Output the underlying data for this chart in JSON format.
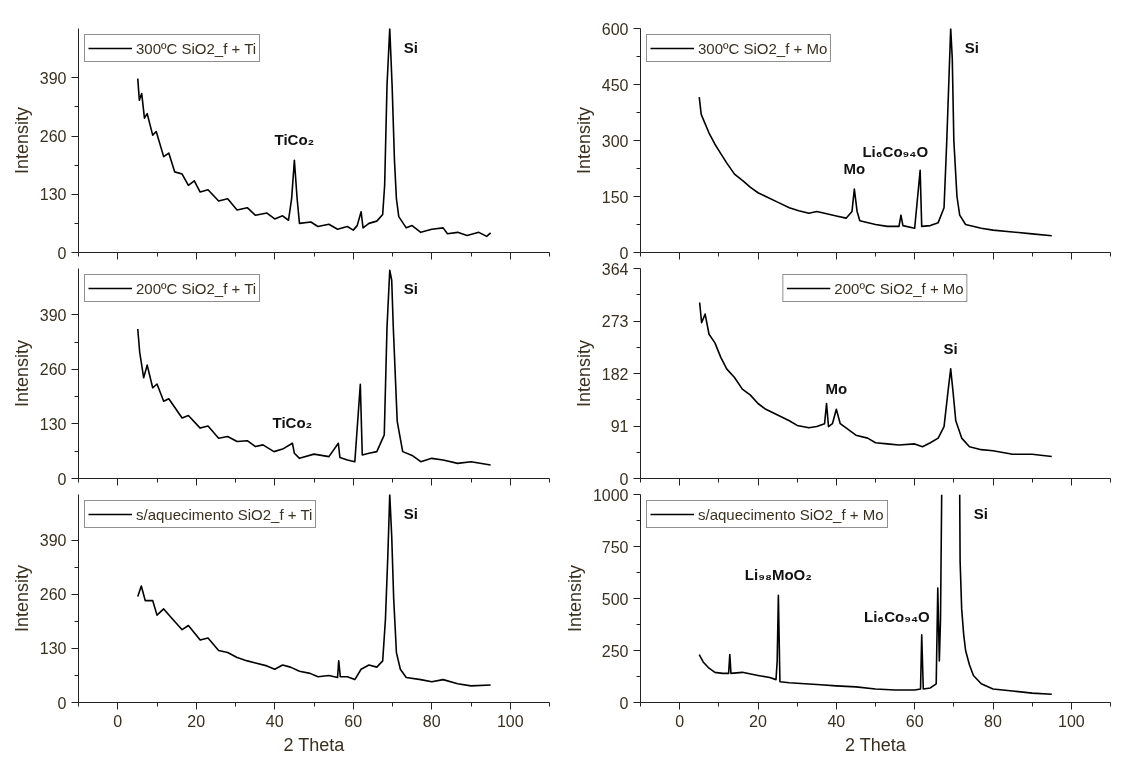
{
  "chart_data": [
    {
      "type": "line",
      "ylabel": "Intensity",
      "xlim": [
        -10,
        110
      ],
      "xticks": [
        0,
        20,
        40,
        60,
        80,
        100
      ],
      "ylim": [
        0,
        500
      ],
      "yticks": [
        0,
        130,
        260,
        390
      ],
      "legend": "top left",
      "tick_labels": "y",
      "x": [
        5.1,
        5.5,
        6.1,
        6.8,
        7.5,
        8.9,
        9.8,
        11.7,
        13,
        14.5,
        16.4,
        18,
        19.5,
        21,
        23,
        25.7,
        28,
        30.4,
        33,
        35.1,
        38,
        40,
        42,
        43.5,
        44.3,
        45,
        45.7,
        46.3,
        49.2,
        51,
        53.8,
        56,
        58.5,
        60,
        61,
        62,
        62.5,
        64,
        66,
        67.5,
        68,
        68.6,
        69.3,
        69.9,
        70.5,
        71,
        71.6,
        73.5,
        75,
        77.2,
        80,
        82.9,
        84,
        86.6,
        89,
        92,
        94,
        95
      ],
      "series": [
        {
          "name": "300ºC SiO2_f + Ti",
          "color": "#000000",
          "values": [
            388,
            340,
            355,
            300,
            310,
            262,
            270,
            214,
            222,
            180,
            175,
            150,
            160,
            135,
            140,
            115,
            120,
            95,
            100,
            83,
            88,
            75,
            82,
            72,
            120,
            206,
            120,
            65,
            68,
            58,
            63,
            52,
            58,
            50,
            60,
            91,
            55,
            65,
            70,
            85,
            150,
            373,
            500,
            373,
            206,
            120,
            80,
            55,
            60,
            45,
            52,
            55,
            42,
            45,
            38,
            45,
            36,
            44
          ]
        }
      ],
      "annotations": [
        {
          "text": "TiCo₂",
          "x": 45,
          "y": 206
        },
        {
          "text": "Si",
          "x": 69.3,
          "y": 500
        }
      ]
    },
    {
      "type": "line",
      "ylabel": "Intensity",
      "xlim": [
        -10,
        110
      ],
      "xticks": [
        0,
        20,
        40,
        60,
        80,
        100
      ],
      "ylim": [
        0,
        500
      ],
      "yticks": [
        0,
        130,
        260,
        390
      ],
      "legend": "top left",
      "tick_labels": "y",
      "x": [
        5.1,
        5.6,
        6.6,
        7.5,
        8.9,
        10,
        11.7,
        13,
        16.4,
        18,
        21,
        23,
        25.7,
        28,
        30.4,
        33,
        35.1,
        37,
        39.8,
        42,
        44.5,
        45,
        46.3,
        50,
        53.8,
        56.2,
        56.6,
        58.5,
        60.4,
        61.8,
        62.3,
        64,
        66,
        67.9,
        68.6,
        69.3,
        69.8,
        70.2,
        71.2,
        72.6,
        75,
        77.2,
        80,
        82.9,
        86.6,
        90,
        95
      ],
      "series": [
        {
          "name": "200ºC SiO2_f + Ti",
          "color": "#000000",
          "values": [
            356,
            300,
            240,
            270,
            216,
            225,
            184,
            190,
            144,
            150,
            120,
            125,
            96,
            100,
            88,
            90,
            76,
            80,
            64,
            70,
            84,
            60,
            48,
            58,
            52,
            84,
            50,
            44,
            40,
            224,
            56,
            60,
            64,
            104,
            360,
            496,
            472,
            360,
            136,
            64,
            55,
            40,
            48,
            44,
            36,
            40,
            32
          ]
        }
      ],
      "annotations": [
        {
          "text": "TiCo₂",
          "x": 44.5,
          "y": 84
        },
        {
          "text": "Si",
          "x": 69.3,
          "y": 496
        }
      ]
    },
    {
      "type": "line",
      "xlabel": "2 Theta",
      "ylabel": "Intensity",
      "xlim": [
        -10,
        110
      ],
      "xticks": [
        0,
        20,
        40,
        60,
        80,
        100
      ],
      "ylim": [
        0,
        500
      ],
      "yticks": [
        0,
        130,
        260,
        390
      ],
      "legend": "top left",
      "x": [
        5.1,
        6,
        7,
        8.9,
        10,
        11.7,
        14,
        16.4,
        18,
        21,
        23,
        25.7,
        28,
        30.4,
        33,
        35.1,
        38,
        40,
        42,
        44,
        46.3,
        49,
        51,
        53.8,
        56,
        56.3,
        56.7,
        58.5,
        60.4,
        62,
        64,
        66,
        67.5,
        68.2,
        68.8,
        69.3,
        69.8,
        70.3,
        71,
        72,
        73.5,
        77.2,
        80,
        82.9,
        86.6,
        90,
        95
      ],
      "series": [
        {
          "name": "s/aquecimento SiO2_f + Ti",
          "color": "#000000",
          "values": [
            255,
            280,
            245,
            245,
            210,
            225,
            200,
            175,
            185,
            150,
            155,
            125,
            120,
            108,
            100,
            95,
            88,
            80,
            90,
            85,
            75,
            70,
            62,
            65,
            60,
            100,
            62,
            62,
            55,
            80,
            90,
            85,
            100,
            200,
            350,
            500,
            400,
            250,
            120,
            80,
            60,
            55,
            50,
            55,
            45,
            40,
            42
          ]
        }
      ],
      "annotations": [
        {
          "text": "Si",
          "x": 69.3,
          "y": 500
        }
      ]
    },
    {
      "type": "line",
      "ylabel": "Intensity",
      "xlim": [
        -10,
        110
      ],
      "xticks": [
        0,
        20,
        40,
        60,
        80,
        100
      ],
      "ylim": [
        0,
        600
      ],
      "yticks": [
        0,
        150,
        300,
        450,
        600
      ],
      "legend": "top left",
      "tick_labels": "y",
      "x": [
        5.0,
        5.5,
        6.3,
        7.5,
        9,
        10.5,
        12,
        14,
        16.4,
        18,
        20,
        22,
        25,
        28,
        30.4,
        33,
        35,
        37,
        40,
        42.5,
        44,
        44.6,
        45.3,
        46,
        50,
        53,
        56,
        56.5,
        57,
        60,
        61.4,
        61.8,
        64,
        66,
        67.5,
        68.2,
        68.8,
        69.2,
        69.6,
        70,
        70.8,
        71.5,
        73,
        77,
        80,
        85,
        90,
        95
      ],
      "series": [
        {
          "name": "300ºC SiO2_f + Mo",
          "color": "#000000",
          "values": [
            416,
            370,
            350,
            320,
            290,
            265,
            240,
            210,
            190,
            175,
            160,
            150,
            135,
            120,
            112,
            105,
            110,
            105,
            98,
            92,
            110,
            170,
            110,
            85,
            75,
            70,
            70,
            100,
            72,
            65,
            220,
            70,
            72,
            80,
            120,
            300,
            480,
            600,
            520,
            300,
            150,
            100,
            75,
            65,
            60,
            55,
            50,
            45
          ]
        }
      ],
      "annotations": [
        {
          "text": "Mo",
          "x": 44.6,
          "y": 170
        },
        {
          "text": "Li₆Co₉₄O",
          "x": 61.4,
          "y": 220
        },
        {
          "text": "Si",
          "x": 69.2,
          "y": 600
        }
      ]
    },
    {
      "type": "line",
      "ylabel": "Intensity",
      "xlim": [
        -10,
        110
      ],
      "xticks": [
        0,
        20,
        40,
        60,
        80,
        100
      ],
      "ylim": [
        0,
        364
      ],
      "yticks": [
        0,
        91,
        182,
        273,
        364
      ],
      "legend": "top",
      "tick_labels": "y",
      "x": [
        5.1,
        5.6,
        6.5,
        7.5,
        9,
        10.5,
        12,
        14,
        16,
        18,
        20,
        22,
        25,
        28,
        30,
        33,
        35,
        37,
        37.5,
        38,
        39,
        40,
        41,
        43,
        45,
        48,
        50,
        53,
        56,
        60,
        62,
        64,
        66,
        67.5,
        68.5,
        69.2,
        69.8,
        70.5,
        72,
        74,
        77,
        80,
        85,
        90,
        95
      ],
      "series": [
        {
          "name": "200ºC SiO2_f + Mo",
          "color": "#000000",
          "values": [
            305,
            270,
            285,
            250,
            235,
            210,
            190,
            175,
            155,
            145,
            130,
            120,
            110,
            100,
            92,
            88,
            90,
            95,
            130,
            90,
            95,
            120,
            95,
            85,
            75,
            70,
            62,
            60,
            58,
            60,
            55,
            62,
            70,
            90,
            150,
            190,
            150,
            100,
            70,
            55,
            50,
            48,
            42,
            42,
            38
          ]
        }
      ],
      "annotations": [
        {
          "text": "Mo",
          "x": 40,
          "y": 120
        },
        {
          "text": "Si",
          "x": 69.2,
          "y": 190
        }
      ]
    },
    {
      "type": "line",
      "xlabel": "2 Theta",
      "ylabel": "Intensity",
      "xlim": [
        -10,
        110
      ],
      "xticks": [
        0,
        20,
        40,
        60,
        80,
        100
      ],
      "ylim": [
        0,
        1000
      ],
      "yticks": [
        0,
        250,
        500,
        750,
        1000
      ],
      "legend": "top left",
      "x": [
        5,
        6,
        7.5,
        9,
        11,
        12.5,
        12.8,
        13.1,
        16,
        20,
        23,
        24.6,
        24.9,
        25.2,
        25.6,
        28,
        32,
        36,
        40,
        45,
        50,
        55,
        60,
        61.5,
        61.8,
        62.2,
        64,
        65.5,
        65.9,
        66.3,
        66.6,
        66.9,
        69.2,
        71.5,
        71.6,
        72,
        72.5,
        73,
        74,
        75,
        77,
        80,
        85,
        90,
        95
      ],
      "series": [
        {
          "name": "s/aquecimento SiO2_f + Mo",
          "color": "#000000",
          "values": [
            230,
            195,
            165,
            145,
            140,
            140,
            230,
            140,
            145,
            130,
            120,
            110,
            200,
            515,
            100,
            95,
            90,
            85,
            80,
            75,
            65,
            60,
            60,
            65,
            325,
            65,
            70,
            90,
            550,
            200,
            400,
            1000,
            null,
            1000,
            680,
            450,
            330,
            250,
            180,
            130,
            90,
            65,
            55,
            45,
            40
          ]
        }
      ],
      "annotations": [
        {
          "text": "Li₉₈MoO₂",
          "x": 25.2,
          "y": 515
        },
        {
          "text": "Li₆Co₉₄O",
          "x": 61.8,
          "y": 325
        },
        {
          "text": "Si",
          "x": 71.5,
          "y": 1000
        }
      ]
    }
  ]
}
